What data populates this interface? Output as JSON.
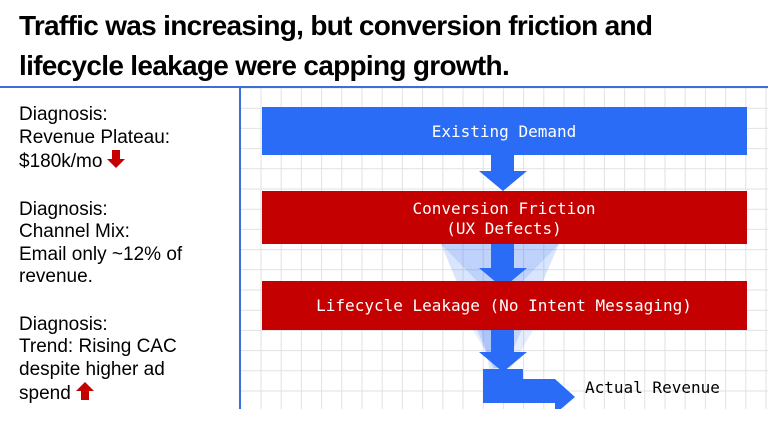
{
  "title": "Traffic was increasing, but conversion friction and lifecycle leakage were capping growth.",
  "diagnoses": [
    {
      "heading": "Diagnosis:",
      "lines": [
        "Revenue Plateau:",
        "$180k/mo"
      ],
      "trend_icon": "arrow-down-icon"
    },
    {
      "heading": "Diagnosis:",
      "lines": [
        "Channel Mix:",
        "Email only ~12% of",
        "revenue."
      ]
    },
    {
      "heading": "Diagnosis:",
      "lines": [
        "Trend: Rising CAC",
        "despite higher ad",
        "spend"
      ],
      "trend_icon": "arrow-up-icon"
    }
  ],
  "flow": {
    "stage1": "Existing Demand",
    "stage2_line1": "Conversion Friction",
    "stage2_line2": "(UX Defects)",
    "stage3": "Lifecycle Leakage (No Intent Messaging)",
    "output": "Actual Revenue"
  },
  "colors": {
    "blue": "#2b6cf6",
    "red": "#c40000",
    "grid": "#e2e2e2"
  }
}
